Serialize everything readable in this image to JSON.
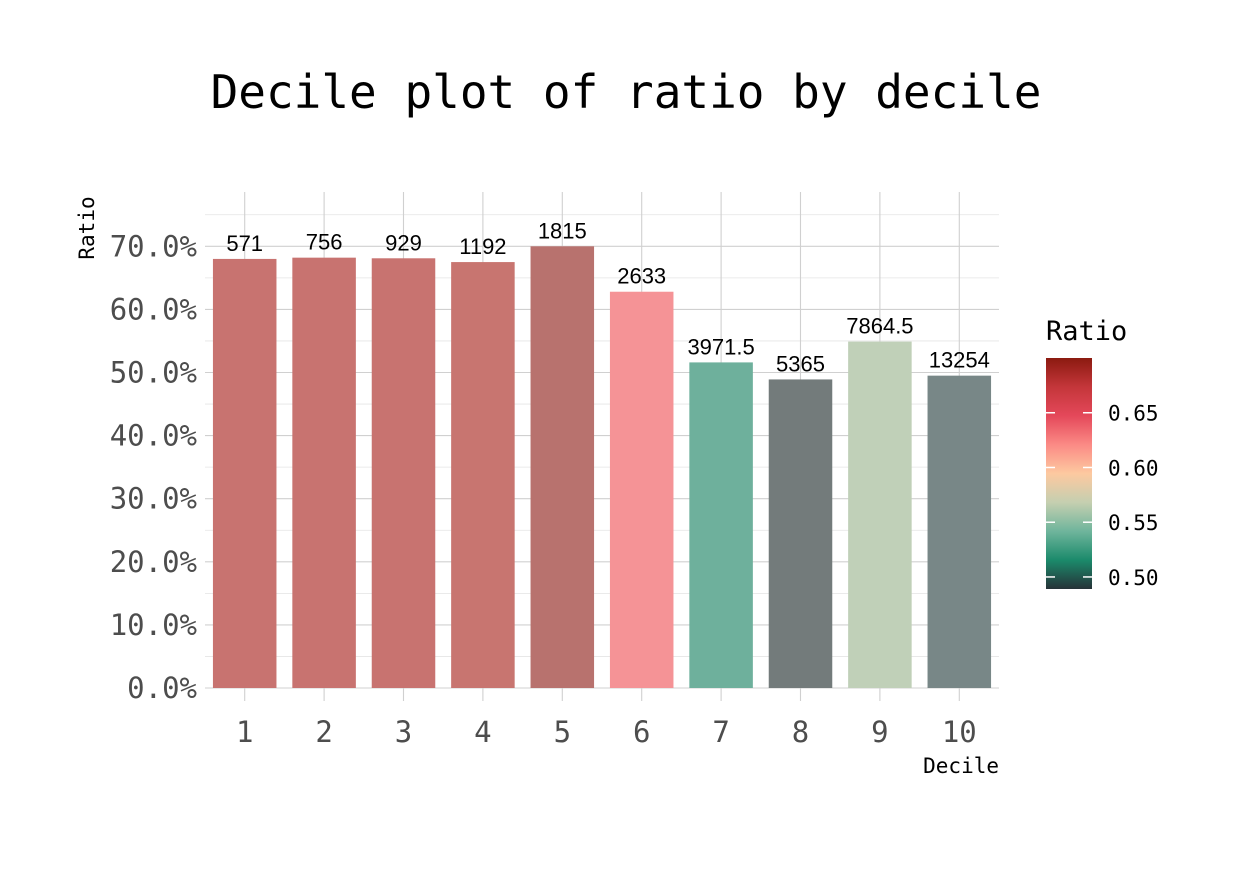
{
  "chart_data": {
    "type": "bar",
    "title": "Decile plot of ratio by decile",
    "xlabel": "Decile",
    "ylabel": "Ratio",
    "categories": [
      "1",
      "2",
      "3",
      "4",
      "5",
      "6",
      "7",
      "8",
      "9",
      "10"
    ],
    "values": [
      0.68,
      0.682,
      0.681,
      0.675,
      0.7,
      0.628,
      0.516,
      0.489,
      0.549,
      0.495
    ],
    "bar_labels": [
      "571",
      "756",
      "929",
      "1192",
      "1815",
      "2633",
      "3971.5",
      "5365",
      "7864.5",
      "13254"
    ],
    "bar_colors": [
      "#c87370",
      "#c87370",
      "#c87370",
      "#c87570",
      "#b8726e",
      "#f59396",
      "#6eb09c",
      "#737b7b",
      "#c0d0b8",
      "#788787"
    ],
    "ylim": [
      0,
      0.75
    ],
    "y_ticks": [
      {
        "value": 0.0,
        "label": "0.0%"
      },
      {
        "value": 0.1,
        "label": "10.0%"
      },
      {
        "value": 0.2,
        "label": "20.0%"
      },
      {
        "value": 0.3,
        "label": "30.0%"
      },
      {
        "value": 0.4,
        "label": "40.0%"
      },
      {
        "value": 0.5,
        "label": "50.0%"
      },
      {
        "value": 0.6,
        "label": "60.0%"
      },
      {
        "value": 0.7,
        "label": "70.0%"
      }
    ],
    "grid": true,
    "legend": {
      "title": "Ratio",
      "position": "right",
      "range": [
        0.489,
        0.7
      ],
      "ticks": [
        {
          "value": 0.5,
          "label": "0.50"
        },
        {
          "value": 0.55,
          "label": "0.55"
        },
        {
          "value": 0.6,
          "label": "0.60"
        },
        {
          "value": 0.65,
          "label": "0.65"
        }
      ],
      "gradient_colors": [
        "#263238",
        "#1b8a6b",
        "#6fb59c",
        "#c5cfb0",
        "#fdc9a0",
        "#fb8a85",
        "#e4485a",
        "#c4363a",
        "#8b1a10"
      ]
    }
  }
}
